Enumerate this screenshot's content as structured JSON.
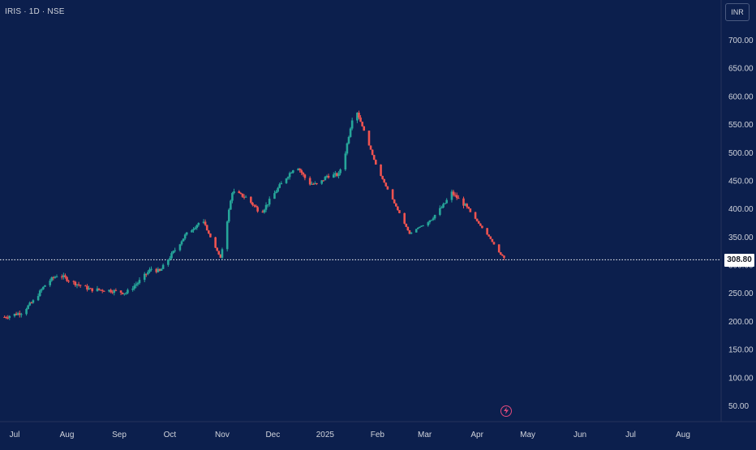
{
  "header": {
    "symbol_title": "IRIS · 1D · NSE"
  },
  "currency_button": {
    "label": "INR"
  },
  "last_price_label": "308.80",
  "chart_data": {
    "type": "candlestick",
    "x_axis": {
      "tick_labels": [
        "Jul",
        "Aug",
        "Sep",
        "Oct",
        "Nov",
        "Dec",
        "2025",
        "Feb",
        "Mar",
        "Apr",
        "May",
        "Jun",
        "Jul",
        "Aug"
      ]
    },
    "y_axis": {
      "tick_values": [
        50,
        100,
        150,
        200,
        250,
        300,
        350,
        400,
        450,
        500,
        550,
        600,
        650,
        700
      ],
      "tick_labels": [
        "50.00",
        "100.00",
        "150.00",
        "200.00",
        "250.00",
        "300.00",
        "350.00",
        "400.00",
        "450.00",
        "500.00",
        "550.00",
        "600.00",
        "650.00",
        "700.00"
      ],
      "range": [
        20,
        725
      ]
    },
    "last_price": 308.8,
    "colors": {
      "up": "#26a69a",
      "down": "#ef5350",
      "background": "#0c1f4d",
      "last_price_line": "#ffffff"
    },
    "waypoints": [
      [
        "2024-06-25",
        207
      ],
      [
        "2024-07-05",
        215
      ],
      [
        "2024-07-12",
        235
      ],
      [
        "2024-07-20",
        268
      ],
      [
        "2024-07-27",
        283
      ],
      [
        "2024-08-05",
        268
      ],
      [
        "2024-08-15",
        256
      ],
      [
        "2024-08-25",
        255
      ],
      [
        "2024-09-05",
        250
      ],
      [
        "2024-09-12",
        268
      ],
      [
        "2024-09-20",
        293
      ],
      [
        "2024-09-25",
        288
      ],
      [
        "2024-10-10",
        352
      ],
      [
        "2024-10-20",
        380
      ],
      [
        "2024-10-31",
        312
      ],
      [
        "2024-11-07",
        430
      ],
      [
        "2024-11-15",
        420
      ],
      [
        "2024-11-24",
        392
      ],
      [
        "2024-12-05",
        440
      ],
      [
        "2024-12-15",
        478
      ],
      [
        "2024-12-22",
        445
      ],
      [
        "2024-12-28",
        442
      ],
      [
        "2025-01-02",
        458
      ],
      [
        "2025-01-09",
        460
      ],
      [
        "2025-01-13",
        500
      ],
      [
        "2025-01-17",
        560
      ],
      [
        "2025-01-20",
        572
      ],
      [
        "2025-02-01",
        470
      ],
      [
        "2025-02-20",
        355
      ],
      [
        "2025-03-05",
        382
      ],
      [
        "2025-03-12",
        405
      ],
      [
        "2025-03-17",
        428
      ],
      [
        "2025-03-25",
        405
      ],
      [
        "2025-04-08",
        350
      ],
      [
        "2025-04-17",
        309
      ]
    ]
  }
}
